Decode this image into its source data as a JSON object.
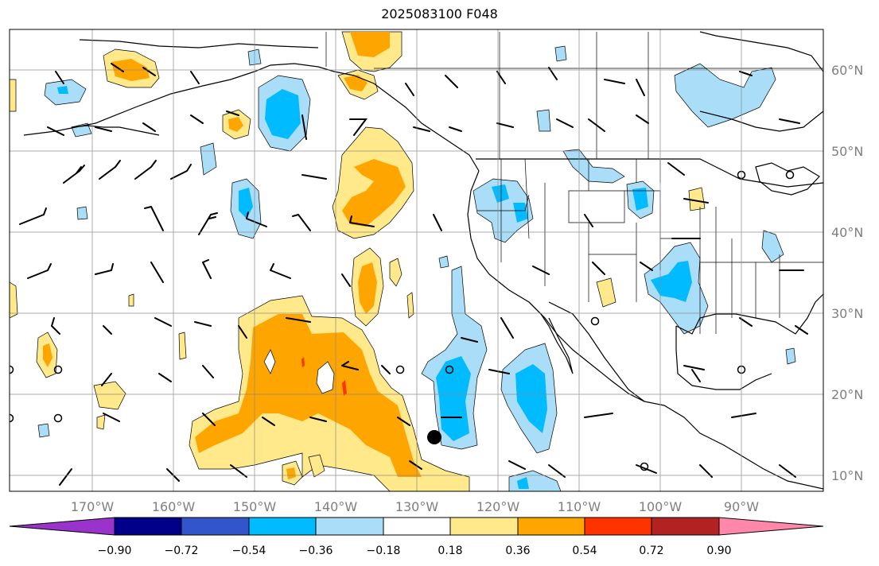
{
  "title": "2025083100 F048",
  "latitude_labels": [
    "10°N",
    "20°N",
    "30°N",
    "40°N",
    "50°N",
    "60°N"
  ],
  "longitude_labels": [
    "170°W",
    "160°W",
    "150°W",
    "140°W",
    "130°W",
    "120°W",
    "110°W",
    "100°W",
    "90°W"
  ],
  "colorbar": {
    "tick_labels": [
      "−0.90",
      "−0.72",
      "−0.54",
      "−0.36",
      "−0.18",
      "0.18",
      "0.36",
      "0.54",
      "0.72",
      "0.90"
    ],
    "colors": [
      "#9933cc",
      "#000088",
      "#3355cc",
      "#00bbff",
      "#aaddf8",
      "#ffffff",
      "#ffe98a",
      "#ffa500",
      "#ff3300",
      "#b22222",
      "#ff88aa"
    ]
  },
  "fill_colors": {
    "light_yellow": "#ffe98a",
    "orange": "#ffa500",
    "red": "#ff3300",
    "light_blue": "#aaddf8",
    "blue": "#00bbff"
  },
  "marker": {
    "description_icon": "storm-center-dot-icon"
  }
}
